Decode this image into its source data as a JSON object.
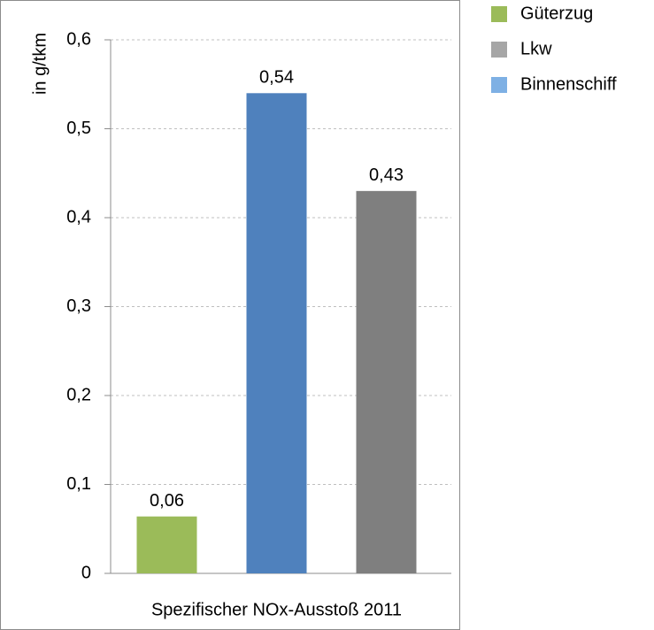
{
  "chart_data": {
    "type": "bar",
    "categories": [
      "Spezifischer NOx-Ausstoß 2011"
    ],
    "y_label": "in g/tkm",
    "series": [
      {
        "name": "Güterzug",
        "color": "#9bbb59",
        "legend_color": "#9bbb59",
        "values": [
          0.064
        ],
        "value_labels": [
          "0,06"
        ]
      },
      {
        "name": "Lkw",
        "color": "#4f81bd",
        "legend_color": "#a6a6a6",
        "values": [
          0.54
        ],
        "value_labels": [
          "0,54"
        ]
      },
      {
        "name": "Binnenschiff",
        "color": "#7f7f7f",
        "legend_color": "#7eb0e4",
        "values": [
          0.43
        ],
        "value_labels": [
          "0,43"
        ]
      }
    ],
    "ylim": [
      0,
      0.6
    ],
    "yticks": [
      0,
      {
        "value": 0.1,
        "label": "0,1"
      },
      {
        "value": 0.2,
        "label": "0,2"
      },
      {
        "value": 0.3,
        "label": "0,3"
      },
      {
        "value": 0.4,
        "label": "0,4"
      },
      {
        "value": 0.5,
        "label": "0,5"
      },
      {
        "value": 0.6,
        "label": "0,6"
      }
    ],
    "grid": true,
    "legend": "right"
  }
}
